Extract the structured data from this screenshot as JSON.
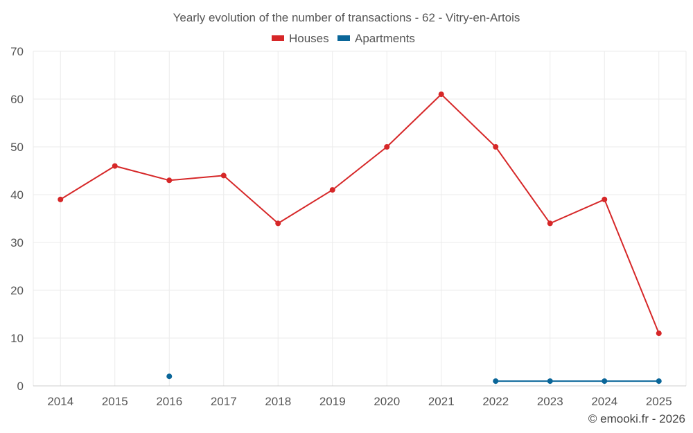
{
  "chart_data": {
    "type": "line",
    "title": "Yearly evolution of the number of transactions - 62 - Vitry-en-Artois",
    "categories": [
      "2014",
      "2015",
      "2016",
      "2017",
      "2018",
      "2019",
      "2020",
      "2021",
      "2022",
      "2023",
      "2024",
      "2025"
    ],
    "series": [
      {
        "name": "Houses",
        "color": "#d62728",
        "values": [
          39,
          46,
          43,
          44,
          34,
          41,
          50,
          61,
          50,
          34,
          39,
          11
        ]
      },
      {
        "name": "Apartments",
        "color": "#0a6699",
        "values": [
          null,
          null,
          2,
          null,
          null,
          null,
          null,
          null,
          1,
          1,
          1,
          1
        ]
      }
    ],
    "ylim": [
      0,
      70
    ],
    "yticks": [
      0,
      10,
      20,
      30,
      40,
      50,
      60,
      70
    ],
    "xlabel": "",
    "ylabel": "",
    "legend_position": "top-center",
    "grid": true
  },
  "credit": "© emooki.fr - 2026"
}
